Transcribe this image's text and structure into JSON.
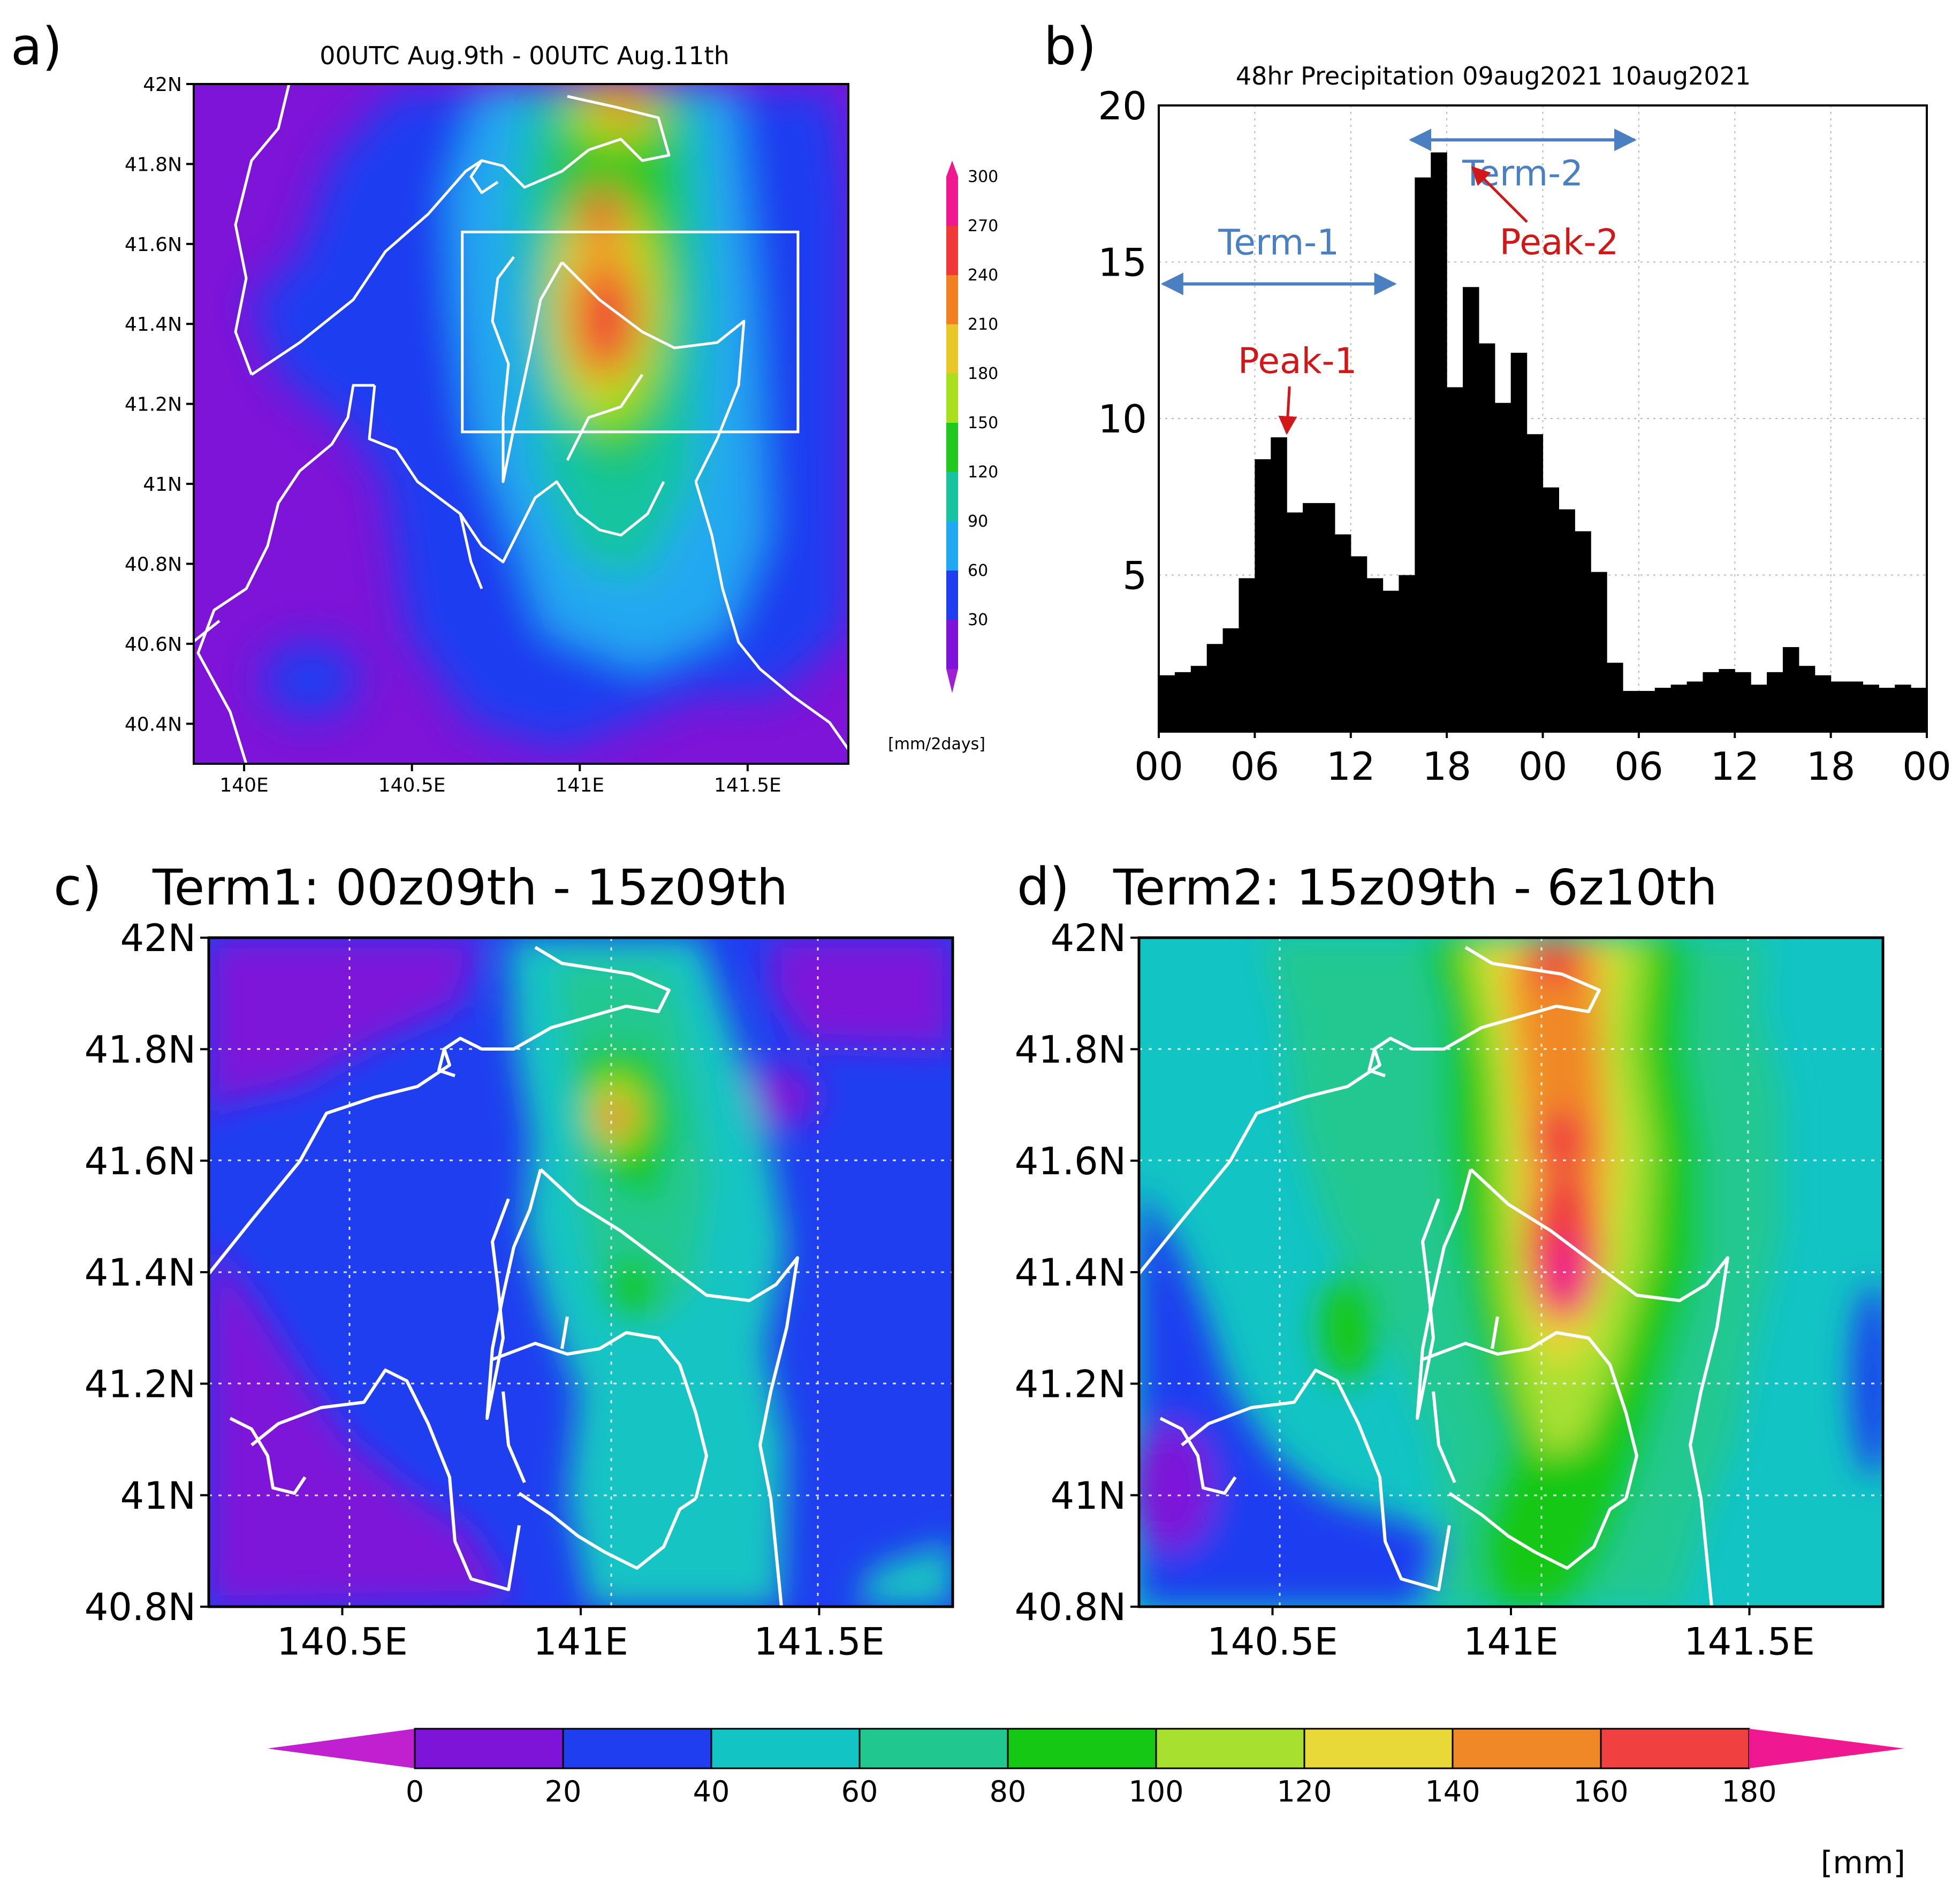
{
  "colors": {
    "bars": "#000000",
    "arrow_blue": "#4a7fc1",
    "peak_red": "#d01818",
    "coast": "#ffffff",
    "grid": "#b8b8b8"
  },
  "chart_data": [
    {
      "id": "a",
      "type": "heatmap",
      "panel_label": "a)",
      "title": "00UTC Aug.9th  - 00UTC Aug.11th",
      "x_ticks": [
        "140E",
        "140.5E",
        "141E",
        "141.5E"
      ],
      "x_tick_values": [
        140.0,
        140.5,
        141.0,
        141.5
      ],
      "y_ticks": [
        "42N",
        "41.8N",
        "41.6N",
        "41.4N",
        "41.2N",
        "41N",
        "40.8N",
        "40.6N",
        "40.4N"
      ],
      "y_tick_values": [
        42.0,
        41.8,
        41.6,
        41.4,
        41.2,
        41.0,
        40.8,
        40.6,
        40.4
      ],
      "xlim": [
        139.85,
        141.8
      ],
      "ylim": [
        40.3,
        42.0
      ],
      "highlight_box": {
        "lon": [
          140.65,
          141.65
        ],
        "lat": [
          41.13,
          41.63
        ]
      },
      "colorbar": {
        "levels": [
          "30",
          "60",
          "90",
          "120",
          "150",
          "180",
          "210",
          "240",
          "270",
          "300"
        ],
        "colors": [
          "#7d14d8",
          "#1f3ef0",
          "#20a8f0",
          "#18c4a0",
          "#20c820",
          "#a8e020",
          "#e8c828",
          "#f08020",
          "#f03838",
          "#f01890"
        ],
        "unit": "[mm/2days]"
      },
      "approx_field": "48hr accumulated precipitation; maximum > 270 mm near 141.1E 41.4N"
    },
    {
      "id": "b",
      "type": "bar",
      "panel_label": "b)",
      "title": "48hr Precipitation 09aug2021 10aug2021",
      "x_tick_labels": [
        "00",
        "06",
        "12",
        "18",
        "00",
        "06",
        "12",
        "18",
        "00"
      ],
      "x_tick_hours": [
        0,
        6,
        12,
        18,
        24,
        30,
        36,
        42,
        48
      ],
      "y_ticks": [
        "5",
        "10",
        "15",
        "20"
      ],
      "y_tick_values": [
        5,
        10,
        15,
        20
      ],
      "ylim": [
        0,
        20
      ],
      "xlim": [
        0,
        48
      ],
      "hours": [
        0,
        1,
        2,
        3,
        4,
        5,
        6,
        7,
        8,
        9,
        10,
        11,
        12,
        13,
        14,
        15,
        16,
        17,
        18,
        19,
        20,
        21,
        22,
        23,
        24,
        25,
        26,
        27,
        28,
        29,
        30,
        31,
        32,
        33,
        34,
        35,
        36,
        37,
        38,
        39,
        40,
        41,
        42,
        43,
        44,
        45,
        46,
        47
      ],
      "values": [
        1.8,
        1.9,
        2.1,
        2.8,
        3.3,
        4.9,
        8.7,
        9.4,
        7.0,
        7.3,
        7.3,
        6.3,
        5.6,
        4.9,
        4.5,
        5.0,
        17.7,
        18.5,
        11.0,
        14.2,
        12.4,
        10.5,
        12.1,
        9.5,
        7.8,
        7.1,
        6.4,
        5.1,
        2.2,
        1.3,
        1.3,
        1.4,
        1.5,
        1.6,
        1.9,
        2.0,
        1.9,
        1.5,
        1.9,
        2.7,
        2.1,
        1.8,
        1.6,
        1.6,
        1.5,
        1.4,
        1.5,
        1.4
      ],
      "annotations": [
        {
          "text": "Term-1",
          "kind": "range",
          "from_hour": 0,
          "to_hour": 15,
          "value": 14.3
        },
        {
          "text": "Term-2",
          "kind": "range",
          "from_hour": 15.5,
          "to_hour": 30,
          "value": 18.9
        },
        {
          "text": "Peak-1",
          "kind": "point",
          "hour": 7.5,
          "value": 9.4
        },
        {
          "text": "Peak-2",
          "kind": "point",
          "hour": 18.5,
          "value": 18.5
        }
      ]
    },
    {
      "id": "c",
      "type": "heatmap",
      "panel_label": "c)",
      "title": "Term1: 00z09th - 15z09th",
      "x_ticks": [
        "140.5E",
        "141E",
        "141.5E"
      ],
      "x_tick_values": [
        140.5,
        141.0,
        141.5
      ],
      "y_ticks": [
        "42N",
        "41.8N",
        "41.6N",
        "41.4N",
        "41.2N",
        "41N",
        "40.8N"
      ],
      "y_tick_values": [
        42.0,
        41.8,
        41.6,
        41.4,
        41.2,
        41.0,
        40.8
      ],
      "xlim": [
        140.22,
        141.78
      ],
      "ylim": [
        40.8,
        42.0
      ],
      "approx_field": "accumulated precipitation; maximum 120-140 mm near 141.05E 41.65N"
    },
    {
      "id": "d",
      "type": "heatmap",
      "panel_label": "d)",
      "title": "Term2: 15z09th - 6z10th",
      "x_ticks": [
        "140.5E",
        "141E",
        "141.5E"
      ],
      "x_tick_values": [
        140.5,
        141.0,
        141.5
      ],
      "y_ticks": [
        "42N",
        "41.8N",
        "41.6N",
        "41.4N",
        "41.2N",
        "41N",
        "40.8N"
      ],
      "y_tick_values": [
        42.0,
        41.8,
        41.6,
        41.4,
        41.2,
        41.0,
        40.8
      ],
      "xlim": [
        140.22,
        141.78
      ],
      "ylim": [
        40.8,
        42.0
      ],
      "approx_field": "accumulated precipitation; maximum > 180 mm near 141.12E 41.38N"
    }
  ],
  "shared_colorbar": {
    "levels": [
      "0",
      "20",
      "40",
      "60",
      "80",
      "100",
      "120",
      "140",
      "160",
      "180"
    ],
    "colors": [
      "#c020d0",
      "#7d14d8",
      "#1f3ef0",
      "#12c4c4",
      "#20c890",
      "#14c814",
      "#a8e030",
      "#e8d838",
      "#f08828",
      "#f04040",
      "#f01890"
    ],
    "unit": "[mm]"
  }
}
